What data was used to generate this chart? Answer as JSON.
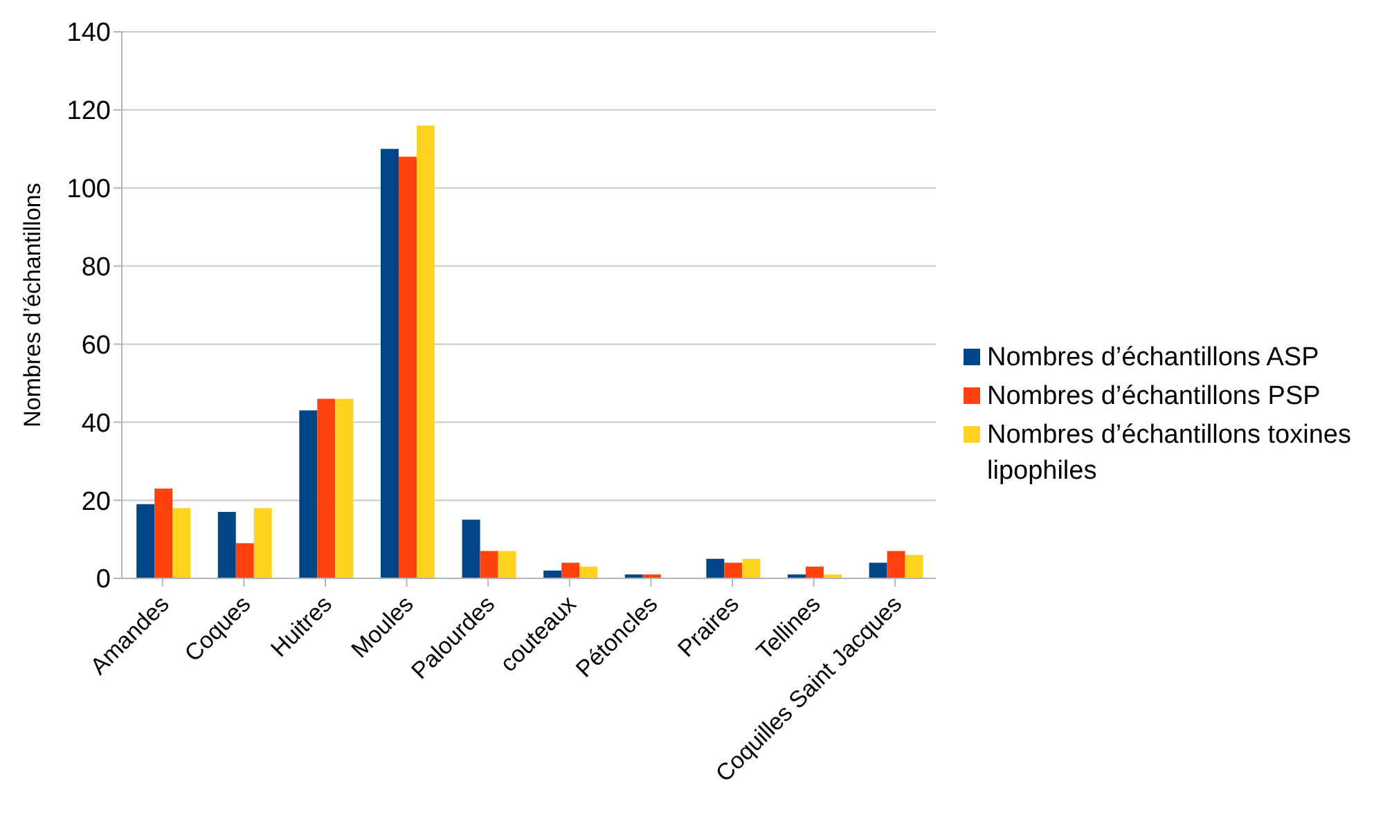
{
  "chart_data": {
    "type": "bar",
    "ylabel": "Nombres d’échantillons",
    "categories": [
      "Amandes",
      "Coques",
      "Huitres",
      "Moules",
      "Palourdes",
      "couteaux",
      "Pétoncles",
      "Praires",
      "Tellines",
      "Coquilles Saint Jacques"
    ],
    "series": [
      {
        "name": "Nombres d’échantillons ASP",
        "color": "#004586",
        "values": [
          19,
          17,
          43,
          110,
          15,
          2,
          1,
          5,
          1,
          4
        ]
      },
      {
        "name": "Nombres d’échantillons PSP",
        "color": "#ff420e",
        "values": [
          23,
          9,
          46,
          108,
          7,
          4,
          1,
          4,
          3,
          7
        ]
      },
      {
        "name": "Nombres d’échantillons toxines lipophiles",
        "color": "#ffd320",
        "values": [
          18,
          18,
          46,
          116,
          7,
          3,
          0,
          5,
          1,
          6
        ]
      }
    ],
    "ylim": [
      0,
      140
    ],
    "yticks": [
      0,
      20,
      40,
      60,
      80,
      100,
      120,
      140
    ],
    "grid": "y",
    "legend": "right"
  }
}
